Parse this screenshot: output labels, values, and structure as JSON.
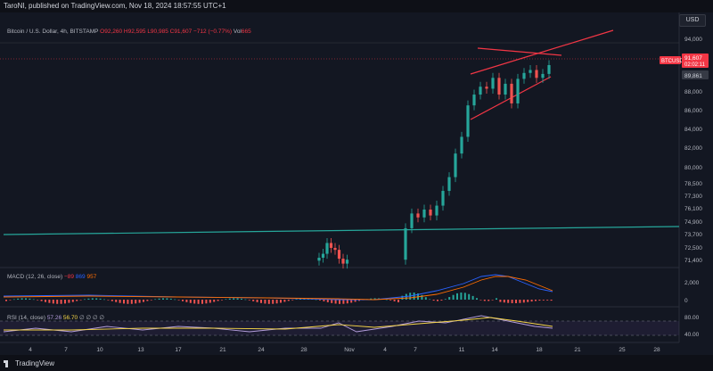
{
  "header": {
    "published_text": "TaroNI, published on TradingView.com, Nov 18, 2024 18:57:55 UTC+1",
    "currency_button": "USD"
  },
  "legend": {
    "symbol": "Bitcoin / U.S. Dollar, 4h, BITSTAMP",
    "open": "O92,260",
    "high": "H92,595",
    "low": "L90,985",
    "close": "C91,607",
    "change": "−712 (−0.77%)",
    "volume_label": "Vol",
    "volume_value": "665"
  },
  "price_axis": {
    "labels": [
      "94,000",
      "91,607",
      "02:02:11",
      "89,861",
      "88,000",
      "86,000",
      "84,000",
      "82,000",
      "80,000",
      "78,500",
      "77,300",
      "76,100",
      "74,900",
      "73,700",
      "72,500",
      "71,400"
    ],
    "ticker_badge": "BTCUSD",
    "current_price": "91,607",
    "countdown": "02:02:11",
    "marker_price": "89,861"
  },
  "macd": {
    "label": "MACD (12, 26, close)",
    "v1": "−89",
    "v2": "869",
    "v3": "957",
    "axis": [
      "2,000",
      "0"
    ]
  },
  "rsi": {
    "label": "RSI (14, close)",
    "v1": "57.26",
    "v2": "56.70",
    "extras": "∅ ∅ ∅ ∅",
    "axis": [
      "80.00",
      "40.00"
    ]
  },
  "time_axis": [
    "4",
    "7",
    "10",
    "13",
    "17",
    "21",
    "24",
    "28",
    "Nov",
    "4",
    "7",
    "11",
    "14",
    "18",
    "21",
    "25",
    "28"
  ],
  "footer": {
    "brand": "TradingView"
  },
  "colors": {
    "up": "#26a69a",
    "down": "#ef5350",
    "wedge": "#f23645",
    "support": "#26a69a",
    "macd_line": "#2962ff",
    "signal_line": "#ff6d00",
    "rsi_line": "#b39ddb",
    "rsi_ma": "#f5d547"
  },
  "chart_data": {
    "type": "candlestick",
    "title": "Bitcoin / U.S. Dollar, 4h, BITSTAMP",
    "ylim": [
      71000,
      95500
    ],
    "close_approx": [
      72000,
      72400,
      73500,
      73000,
      72800,
      71900,
      71400,
      71800,
      75000,
      76500,
      76100,
      76900,
      76300,
      77300,
      78800,
      80200,
      82600,
      84300,
      87500,
      88600,
      89400,
      89200,
      90300,
      88600,
      89700,
      87700,
      90200,
      90800,
      91100,
      90300,
      90700,
      91600
    ],
    "support_level": 74900,
    "wedge_upper": [
      89500,
      95200
    ],
    "wedge_lower": [
      85200,
      89800
    ]
  }
}
